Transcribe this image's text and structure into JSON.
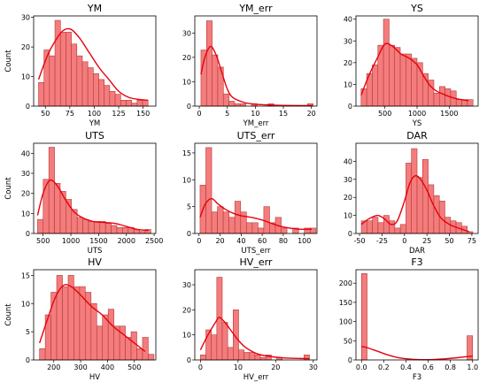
{
  "colors": {
    "bar_fill": "#f47c7c",
    "bar_edge": "#b23a3a",
    "kde": "#e8000b",
    "axis": "#000000"
  },
  "ylabel": "Count",
  "chart_data": [
    {
      "type": "bar",
      "title": "YM",
      "xlabel": "YM",
      "ylabel": "Count",
      "xlim": [
        38,
        163
      ],
      "ylim": [
        0,
        30.5
      ],
      "xticks": [
        50,
        75,
        100,
        125,
        150
      ],
      "yticks": [
        0,
        10,
        20,
        30
      ],
      "bin_start": 43,
      "bin_width": 5.6,
      "values": [
        8,
        19,
        17,
        29,
        25,
        25,
        21,
        17,
        15,
        13,
        11,
        9,
        7,
        5,
        4,
        2,
        2,
        1,
        2,
        2
      ],
      "kde": [
        [
          43,
          9
        ],
        [
          52,
          17
        ],
        [
          60,
          22
        ],
        [
          68,
          25.5
        ],
        [
          76,
          26
        ],
        [
          85,
          23
        ],
        [
          95,
          18
        ],
        [
          105,
          13
        ],
        [
          115,
          9
        ],
        [
          125,
          5
        ],
        [
          135,
          3
        ],
        [
          145,
          2.3
        ],
        [
          155,
          2
        ]
      ]
    },
    {
      "type": "bar",
      "title": "YM_err",
      "xlabel": "YM_err",
      "ylabel": "",
      "xlim": [
        -0.8,
        21
      ],
      "ylim": [
        0,
        37
      ],
      "xticks": [
        0,
        5,
        10,
        15,
        20
      ],
      "yticks": [
        0,
        10,
        20,
        30
      ],
      "bin_start": 0.3,
      "bin_width": 1.0,
      "values": [
        23,
        35,
        21,
        16,
        5,
        2,
        1,
        1,
        0,
        1,
        0,
        0,
        1,
        0,
        0,
        0,
        0,
        0,
        0,
        1
      ],
      "kde": [
        [
          0.3,
          13
        ],
        [
          1,
          20
        ],
        [
          2,
          24.5
        ],
        [
          3,
          21
        ],
        [
          4,
          14
        ],
        [
          5,
          7
        ],
        [
          6,
          3.5
        ],
        [
          8,
          1.5
        ],
        [
          10,
          0.8
        ],
        [
          12,
          0.5
        ],
        [
          15,
          0.3
        ],
        [
          20.3,
          0.2
        ]
      ]
    },
    {
      "type": "bar",
      "title": "YS",
      "xlabel": "YS",
      "ylabel": "",
      "xlim": [
        50,
        1950
      ],
      "ylim": [
        0,
        41.5
      ],
      "xticks": [
        500,
        1000,
        1500
      ],
      "yticks": [
        0,
        10,
        20,
        30,
        40
      ],
      "bin_start": 130,
      "bin_width": 87,
      "values": [
        8,
        15,
        19,
        28,
        40,
        28,
        27,
        24,
        24,
        22,
        20,
        15,
        12,
        6,
        9,
        8,
        7,
        3,
        3,
        3
      ],
      "kde": [
        [
          130,
          5
        ],
        [
          250,
          14
        ],
        [
          380,
          22
        ],
        [
          500,
          28.5
        ],
        [
          620,
          27.5
        ],
        [
          750,
          24
        ],
        [
          880,
          22
        ],
        [
          1000,
          19
        ],
        [
          1100,
          14
        ],
        [
          1200,
          9.5
        ],
        [
          1300,
          7
        ],
        [
          1450,
          5
        ],
        [
          1600,
          3.5
        ],
        [
          1800,
          2.5
        ]
      ]
    },
    {
      "type": "bar",
      "title": "UTS",
      "xlabel": "UTS",
      "ylabel": "Count",
      "xlim": [
        330,
        2530
      ],
      "ylim": [
        0,
        45
      ],
      "xticks": [
        500,
        1000,
        1500,
        2000,
        2500
      ],
      "yticks": [
        0,
        10,
        20,
        30,
        40
      ],
      "bin_start": 400,
      "bin_width": 102,
      "values": [
        7,
        27,
        43,
        25,
        21,
        17,
        12,
        8,
        7,
        6,
        6,
        6,
        5,
        4,
        3,
        3,
        3,
        2,
        1,
        2
      ],
      "kde": [
        [
          400,
          9
        ],
        [
          500,
          20
        ],
        [
          620,
          26.5
        ],
        [
          750,
          24
        ],
        [
          900,
          17
        ],
        [
          1050,
          11
        ],
        [
          1200,
          8
        ],
        [
          1400,
          6
        ],
        [
          1600,
          5.5
        ],
        [
          1800,
          5
        ],
        [
          2000,
          3.5
        ],
        [
          2200,
          2
        ],
        [
          2400,
          1.5
        ]
      ]
    },
    {
      "type": "bar",
      "title": "UTS_err",
      "xlabel": "UTS_err",
      "ylabel": "",
      "xlim": [
        -4,
        112
      ],
      "ylim": [
        0,
        16.8
      ],
      "xticks": [
        0,
        20,
        40,
        60,
        80,
        100
      ],
      "yticks": [
        0,
        5,
        10,
        15
      ],
      "bin_start": 1,
      "bin_width": 5.5,
      "values": [
        9,
        16,
        4,
        5,
        4,
        3,
        6,
        4,
        2,
        2,
        1,
        5,
        2,
        3,
        1,
        0,
        1,
        0,
        1,
        1
      ],
      "kde": [
        [
          1,
          3
        ],
        [
          6,
          5.5
        ],
        [
          12,
          6.5
        ],
        [
          18,
          5.5
        ],
        [
          25,
          4.5
        ],
        [
          32,
          3.8
        ],
        [
          40,
          3.3
        ],
        [
          50,
          3
        ],
        [
          60,
          2.5
        ],
        [
          70,
          1.8
        ],
        [
          80,
          1.2
        ],
        [
          95,
          0.8
        ],
        [
          107,
          0.8
        ]
      ]
    },
    {
      "type": "bar",
      "title": "DAR",
      "xlabel": "DAR",
      "ylabel": "",
      "xlim": [
        -54,
        82
      ],
      "ylim": [
        0,
        50
      ],
      "xticks": [
        -50,
        -25,
        0,
        25,
        50,
        75
      ],
      "yticks": [
        0,
        10,
        20,
        30,
        40
      ],
      "bin_start": -48,
      "bin_width": 6.2,
      "values": [
        7,
        7,
        9,
        6,
        10,
        7,
        3,
        5,
        39,
        47,
        31,
        41,
        27,
        21,
        18,
        9,
        7,
        6,
        4,
        1
      ],
      "kde": [
        [
          -48,
          5
        ],
        [
          -40,
          8
        ],
        [
          -30,
          10
        ],
        [
          -22,
          8
        ],
        [
          -15,
          5
        ],
        [
          -8,
          7
        ],
        [
          0,
          18
        ],
        [
          6,
          28
        ],
        [
          12,
          32
        ],
        [
          18,
          30
        ],
        [
          25,
          24
        ],
        [
          32,
          16
        ],
        [
          40,
          9
        ],
        [
          50,
          5
        ],
        [
          60,
          3
        ],
        [
          72,
          1
        ]
      ]
    },
    {
      "type": "bar",
      "title": "HV",
      "xlabel": "HV",
      "ylabel": "Count",
      "xlim": [
        125,
        580
      ],
      "ylim": [
        0,
        16
      ],
      "xticks": [
        200,
        300,
        400,
        500
      ],
      "yticks": [
        0,
        5,
        10,
        15
      ],
      "bin_start": 147,
      "bin_width": 21.3,
      "values": [
        2,
        8,
        12,
        15,
        13,
        15,
        13,
        13,
        12,
        10,
        6,
        8,
        9,
        6,
        6,
        4,
        5,
        2,
        4,
        1
      ],
      "kde": [
        [
          147,
          3
        ],
        [
          175,
          7
        ],
        [
          205,
          11
        ],
        [
          235,
          13.2
        ],
        [
          265,
          13
        ],
        [
          300,
          11.5
        ],
        [
          340,
          9.5
        ],
        [
          380,
          8
        ],
        [
          420,
          6
        ],
        [
          460,
          4.5
        ],
        [
          500,
          3
        ],
        [
          540,
          1.5
        ]
      ]
    },
    {
      "type": "bar",
      "title": "HV_err",
      "xlabel": "HV_err",
      "ylabel": "",
      "xlim": [
        -1.5,
        31
      ],
      "ylim": [
        0,
        36
      ],
      "xticks": [
        0,
        10,
        20,
        30
      ],
      "yticks": [
        0,
        10,
        20,
        30
      ],
      "bin_start": 0,
      "bin_width": 1.45,
      "values": [
        2,
        12,
        10,
        33,
        15,
        5,
        20,
        4,
        3,
        3,
        2,
        1,
        2,
        0,
        1,
        0,
        0,
        0,
        0,
        2
      ],
      "kde": [
        [
          0,
          4
        ],
        [
          2,
          10
        ],
        [
          4,
          15
        ],
        [
          5,
          17
        ],
        [
          6.5,
          15
        ],
        [
          8,
          12
        ],
        [
          10,
          8
        ],
        [
          12,
          5
        ],
        [
          15,
          2.5
        ],
        [
          18,
          1.5
        ],
        [
          22,
          0.8
        ],
        [
          26,
          0.6
        ],
        [
          29,
          0.5
        ]
      ]
    },
    {
      "type": "bar",
      "title": "F3",
      "xlabel": "F3",
      "ylabel": "",
      "xlim": [
        -0.05,
        1.05
      ],
      "ylim": [
        0,
        235
      ],
      "xticks": [
        0.0,
        0.2,
        0.4,
        0.6,
        0.8,
        1.0
      ],
      "yticks": [
        0,
        50,
        100,
        150,
        200
      ],
      "bin_start": 0,
      "bin_width": 0.05,
      "values": [
        225,
        0,
        0,
        0,
        0,
        0,
        0,
        0,
        0,
        0,
        0,
        0,
        0,
        0,
        0,
        0,
        0,
        0,
        0,
        63
      ],
      "kde": [
        [
          0,
          35
        ],
        [
          0.05,
          32
        ],
        [
          0.15,
          22
        ],
        [
          0.25,
          12
        ],
        [
          0.35,
          5
        ],
        [
          0.5,
          1
        ],
        [
          0.65,
          1
        ],
        [
          0.8,
          4
        ],
        [
          0.9,
          7
        ],
        [
          1.0,
          10
        ]
      ]
    }
  ]
}
